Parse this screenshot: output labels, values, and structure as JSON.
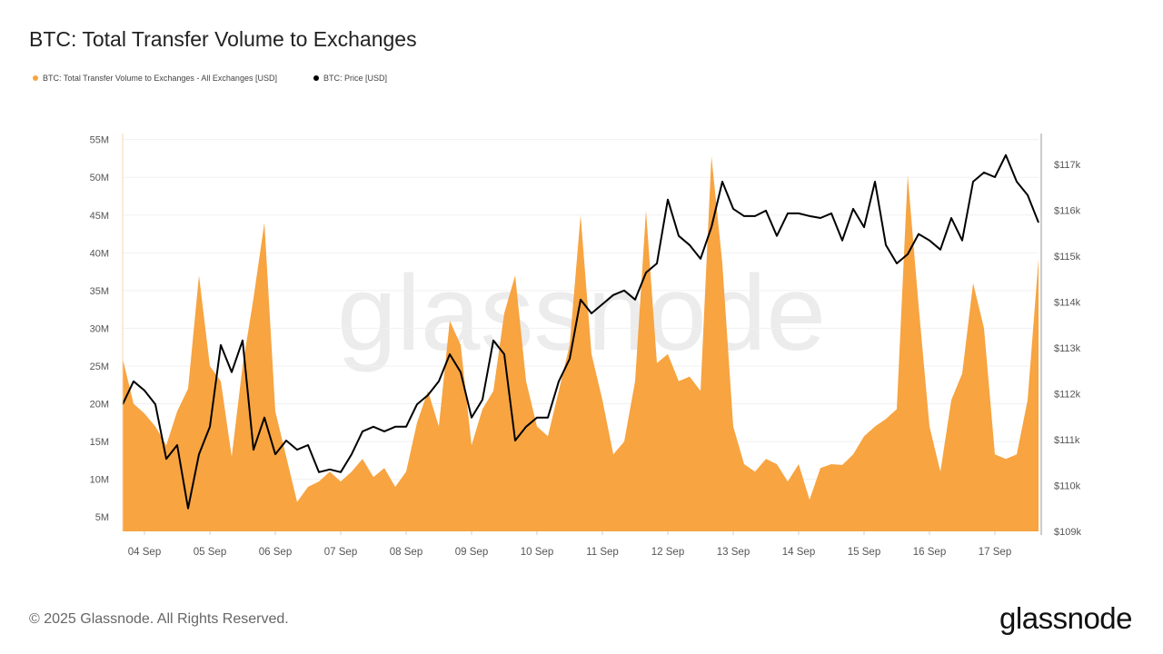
{
  "title": "BTC: Total Transfer Volume to Exchanges",
  "legend": [
    {
      "label": "BTC: Total Transfer Volume to Exchanges - All Exchanges [USD]",
      "color": "#f7a441"
    },
    {
      "label": "BTC: Price [USD]",
      "color": "#000000"
    }
  ],
  "watermark": "glassnode",
  "footer": {
    "copyright": "© 2025 Glassnode. All Rights Reserved.",
    "logo": "glassnode"
  },
  "chart_data": {
    "type": "area+line",
    "title": "BTC: Total Transfer Volume to Exchanges",
    "grid": true,
    "legend_position": "top-left",
    "x": [
      "03 Sep 16:00",
      "03 Sep 20:00",
      "04 Sep 00:00",
      "04 Sep 04:00",
      "04 Sep 08:00",
      "04 Sep 12:00",
      "04 Sep 16:00",
      "04 Sep 20:00",
      "05 Sep 00:00",
      "05 Sep 04:00",
      "05 Sep 08:00",
      "05 Sep 12:00",
      "05 Sep 16:00",
      "05 Sep 20:00",
      "06 Sep 00:00",
      "06 Sep 04:00",
      "06 Sep 08:00",
      "06 Sep 12:00",
      "06 Sep 16:00",
      "06 Sep 20:00",
      "07 Sep 00:00",
      "07 Sep 04:00",
      "07 Sep 08:00",
      "07 Sep 12:00",
      "07 Sep 16:00",
      "07 Sep 20:00",
      "08 Sep 00:00",
      "08 Sep 04:00",
      "08 Sep 08:00",
      "08 Sep 12:00",
      "08 Sep 16:00",
      "08 Sep 20:00",
      "09 Sep 00:00",
      "09 Sep 04:00",
      "09 Sep 08:00",
      "09 Sep 12:00",
      "09 Sep 16:00",
      "09 Sep 20:00",
      "10 Sep 00:00",
      "10 Sep 04:00",
      "10 Sep 08:00",
      "10 Sep 12:00",
      "10 Sep 16:00",
      "10 Sep 20:00",
      "11 Sep 00:00",
      "11 Sep 04:00",
      "11 Sep 08:00",
      "11 Sep 12:00",
      "11 Sep 16:00",
      "11 Sep 20:00",
      "12 Sep 00:00",
      "12 Sep 04:00",
      "12 Sep 08:00",
      "12 Sep 12:00",
      "12 Sep 16:00",
      "12 Sep 20:00",
      "13 Sep 00:00",
      "13 Sep 04:00",
      "13 Sep 08:00",
      "13 Sep 12:00",
      "13 Sep 16:00",
      "13 Sep 20:00",
      "14 Sep 00:00",
      "14 Sep 04:00",
      "14 Sep 08:00",
      "14 Sep 12:00",
      "14 Sep 16:00",
      "14 Sep 20:00",
      "15 Sep 00:00",
      "15 Sep 04:00",
      "15 Sep 08:00",
      "15 Sep 12:00",
      "15 Sep 16:00",
      "15 Sep 20:00",
      "16 Sep 00:00",
      "16 Sep 04:00",
      "16 Sep 08:00",
      "16 Sep 12:00",
      "16 Sep 16:00",
      "16 Sep 20:00",
      "17 Sep 00:00",
      "17 Sep 04:00",
      "17 Sep 08:00",
      "17 Sep 12:00",
      "17 Sep 16:00"
    ],
    "x_ticks": [
      "04 Sep",
      "05 Sep",
      "06 Sep",
      "07 Sep",
      "08 Sep",
      "09 Sep",
      "10 Sep",
      "11 Sep",
      "12 Sep",
      "13 Sep",
      "14 Sep",
      "15 Sep",
      "16 Sep",
      "17 Sep"
    ],
    "y_left": {
      "unit": "M USD",
      "range": [
        3.1,
        55.8
      ],
      "ticks": [
        5,
        10,
        15,
        20,
        25,
        30,
        35,
        40,
        45,
        50,
        55
      ],
      "tick_labels": [
        "5M",
        "10M",
        "15M",
        "20M",
        "25M",
        "30M",
        "35M",
        "40M",
        "45M",
        "50M",
        "55M"
      ]
    },
    "y_right": {
      "unit": "k USD",
      "range": [
        109,
        117.67
      ],
      "ticks": [
        109,
        110,
        111,
        112,
        113,
        114,
        115,
        116,
        117
      ],
      "tick_labels": [
        "$109k",
        "$110k",
        "$111k",
        "$112k",
        "$113k",
        "$114k",
        "$115k",
        "$116k",
        "$117k"
      ]
    },
    "series": [
      {
        "name": "BTC: Total Transfer Volume to Exchanges - All Exchanges [USD]",
        "type": "area",
        "axis": "left",
        "color": "#f7a441",
        "values": [
          26,
          20,
          18.7,
          17,
          14.5,
          19,
          22,
          37,
          25,
          23,
          13,
          25,
          34,
          44,
          19,
          13,
          7,
          9,
          9.7,
          11,
          9.7,
          11,
          12.7,
          10.3,
          11.5,
          9,
          11,
          17.5,
          21.7,
          17,
          31,
          27.8,
          14.5,
          19.3,
          21.7,
          32,
          37,
          23,
          17,
          15.7,
          21.7,
          27.8,
          45,
          26.6,
          20.5,
          13.3,
          15,
          23,
          45.6,
          25.4,
          26.6,
          23,
          23.6,
          21.7,
          52.8,
          38.6,
          17,
          12,
          11,
          12.7,
          12,
          9.7,
          12,
          7.3,
          11.5,
          12,
          11.9,
          13.3,
          15.7,
          17,
          18,
          19.3,
          50.3,
          33,
          17,
          11,
          20.5,
          24,
          36,
          30,
          13.3,
          12.7,
          13.3,
          20.5,
          39.2
        ]
      },
      {
        "name": "BTC: Price [USD]",
        "type": "line",
        "axis": "right",
        "color": "#000000",
        "values": [
          111.77,
          112.27,
          112.07,
          111.77,
          110.58,
          110.88,
          109.5,
          110.68,
          111.28,
          113.06,
          112.47,
          113.16,
          110.78,
          111.48,
          110.68,
          110.98,
          110.78,
          110.88,
          110.29,
          110.35,
          110.29,
          110.68,
          111.18,
          111.28,
          111.18,
          111.28,
          111.28,
          111.77,
          111.97,
          112.27,
          112.86,
          112.47,
          111.48,
          111.87,
          113.16,
          112.86,
          110.98,
          111.28,
          111.48,
          111.48,
          112.27,
          112.76,
          114.05,
          113.75,
          113.95,
          114.15,
          114.25,
          114.05,
          114.64,
          114.84,
          116.23,
          115.44,
          115.24,
          114.94,
          115.63,
          116.62,
          116.03,
          115.87,
          115.87,
          115.99,
          115.44,
          115.93,
          115.93,
          115.87,
          115.83,
          115.93,
          115.34,
          116.03,
          115.63,
          116.62,
          115.24,
          114.84,
          115.04,
          115.48,
          115.34,
          115.14,
          115.83,
          115.34,
          116.62,
          116.82,
          116.72,
          117.2,
          116.62,
          116.33,
          115.73
        ]
      }
    ]
  }
}
